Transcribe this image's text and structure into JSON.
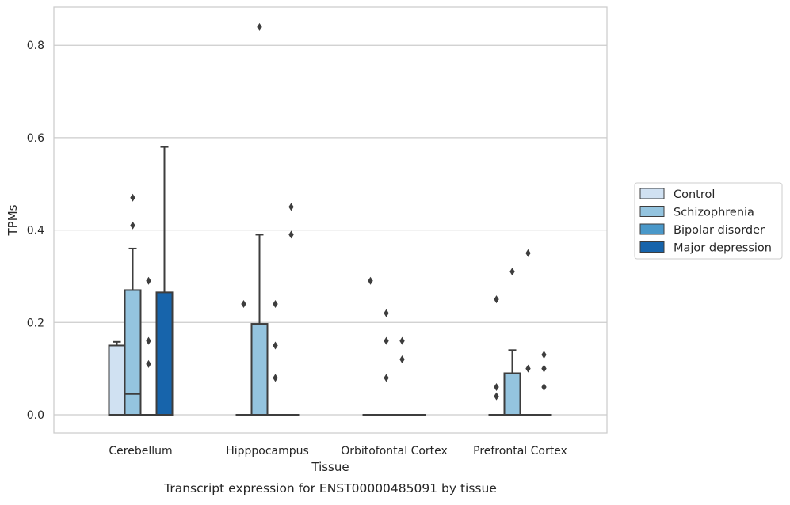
{
  "caption": "Transcript expression for ENST00000485091 by tissue",
  "chart_data": {
    "type": "box",
    "xlabel": "Tissue",
    "ylabel": "TPMs",
    "ylim": [
      -0.04,
      0.885
    ],
    "yticks": [
      0.0,
      0.2,
      0.4,
      0.6,
      0.8
    ],
    "ytick_labels": [
      "0.0",
      "0.2",
      "0.4",
      "0.6",
      "0.8"
    ],
    "grid": "horizontal",
    "legend_position": "right",
    "categories": [
      "Cerebellum",
      "Hipppocampus",
      "Orbitofontal Cortex",
      "Prefrontal Cortex"
    ],
    "series": [
      {
        "name": "Control",
        "color": "#d0e1f2",
        "boxes": [
          {
            "q1": 0.0,
            "median": 0.0,
            "q3": 0.15,
            "whisker_low": 0.0,
            "whisker_high": 0.158,
            "outliers": []
          },
          {
            "q1": 0.0,
            "median": 0.0,
            "q3": 0.0,
            "whisker_low": 0.0,
            "whisker_high": 0.0,
            "outliers": [
              0.24
            ]
          },
          {
            "q1": 0.0,
            "median": 0.0,
            "q3": 0.0,
            "whisker_low": 0.0,
            "whisker_high": 0.0,
            "outliers": [
              0.29
            ]
          },
          {
            "q1": 0.0,
            "median": 0.0,
            "q3": 0.0,
            "whisker_low": 0.0,
            "whisker_high": 0.0,
            "outliers": [
              0.04,
              0.06,
              0.25
            ]
          }
        ]
      },
      {
        "name": "Schizophrenia",
        "color": "#94c4df",
        "boxes": [
          {
            "q1": 0.0,
            "median": 0.045,
            "q3": 0.27,
            "whisker_low": 0.0,
            "whisker_high": 0.36,
            "outliers": [
              0.41,
              0.47
            ]
          },
          {
            "q1": 0.0,
            "median": 0.0,
            "q3": 0.197,
            "whisker_low": 0.0,
            "whisker_high": 0.39,
            "outliers": [
              0.84
            ]
          },
          {
            "q1": 0.0,
            "median": 0.0,
            "q3": 0.0,
            "whisker_low": 0.0,
            "whisker_high": 0.0,
            "outliers": [
              0.08,
              0.16,
              0.22
            ]
          },
          {
            "q1": 0.0,
            "median": 0.0,
            "q3": 0.09,
            "whisker_low": 0.0,
            "whisker_high": 0.14,
            "outliers": [
              0.31
            ]
          }
        ]
      },
      {
        "name": "Bipolar disorder",
        "color": "#4a98c9",
        "boxes": [
          {
            "q1": 0.0,
            "median": 0.0,
            "q3": 0.0,
            "whisker_low": 0.0,
            "whisker_high": 0.0,
            "outliers": [
              0.11,
              0.16,
              0.29
            ]
          },
          {
            "q1": 0.0,
            "median": 0.0,
            "q3": 0.0,
            "whisker_low": 0.0,
            "whisker_high": 0.0,
            "outliers": [
              0.08,
              0.15,
              0.24
            ]
          },
          {
            "q1": 0.0,
            "median": 0.0,
            "q3": 0.0,
            "whisker_low": 0.0,
            "whisker_high": 0.0,
            "outliers": [
              0.12,
              0.16
            ]
          },
          {
            "q1": 0.0,
            "median": 0.0,
            "q3": 0.0,
            "whisker_low": 0.0,
            "whisker_high": 0.0,
            "outliers": [
              0.1,
              0.35
            ]
          }
        ]
      },
      {
        "name": "Major depression",
        "color": "#1764ab",
        "boxes": [
          {
            "q1": 0.0,
            "median": 0.0,
            "q3": 0.265,
            "whisker_low": 0.0,
            "whisker_high": 0.58,
            "outliers": []
          },
          {
            "q1": 0.0,
            "median": 0.0,
            "q3": 0.0,
            "whisker_low": 0.0,
            "whisker_high": 0.0,
            "outliers": [
              0.39,
              0.45
            ]
          },
          {
            "q1": 0.0,
            "median": 0.0,
            "q3": 0.0,
            "whisker_low": 0.0,
            "whisker_high": 0.0,
            "outliers": []
          },
          {
            "q1": 0.0,
            "median": 0.0,
            "q3": 0.0,
            "whisker_low": 0.0,
            "whisker_high": 0.0,
            "outliers": [
              0.06,
              0.1,
              0.13
            ]
          }
        ]
      }
    ]
  }
}
